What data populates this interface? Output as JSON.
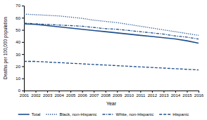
{
  "chart_data": {
    "type": "line",
    "x": [
      2001,
      2002,
      2003,
      2004,
      2005,
      2006,
      2007,
      2008,
      2009,
      2010,
      2011,
      2012,
      2013,
      2014,
      2015,
      2016
    ],
    "series": [
      {
        "name": "Total",
        "color": "#1f4e8c",
        "line_style": "solid",
        "values": [
          55.0,
          54.5,
          53.5,
          52.5,
          51.5,
          50.5,
          49.5,
          48.5,
          47.5,
          46.5,
          45.5,
          44.5,
          43.5,
          42.5,
          41.0,
          39.0
        ]
      },
      {
        "name": "Black, non-Hispanic",
        "color": "#1f4e8c",
        "line_style": "dotted",
        "values": [
          63.0,
          62.5,
          62.0,
          61.5,
          60.5,
          59.5,
          58.0,
          57.0,
          56.0,
          54.5,
          53.0,
          51.5,
          50.0,
          48.5,
          47.0,
          45.5
        ]
      },
      {
        "name": "White, non-Hispanic",
        "color": "#1f4e8c",
        "line_style": "dashdot",
        "values": [
          55.5,
          55.0,
          54.5,
          54.0,
          53.5,
          53.0,
          52.0,
          51.0,
          50.5,
          49.5,
          48.5,
          47.5,
          46.5,
          45.0,
          44.0,
          42.5
        ]
      },
      {
        "name": "Hispanic",
        "color": "#1f4e8c",
        "line_style": "dashed",
        "values": [
          24.0,
          24.0,
          23.5,
          23.0,
          22.5,
          22.0,
          21.5,
          21.0,
          20.5,
          20.0,
          19.5,
          19.0,
          18.5,
          18.0,
          17.5,
          17.0
        ]
      }
    ],
    "xlabel": "Year",
    "ylabel": "Deaths per 100,000 population",
    "xlim": [
      2001,
      2016
    ],
    "xticks": [
      2001,
      2002,
      2003,
      2004,
      2005,
      2006,
      2007,
      2008,
      2009,
      2010,
      2011,
      2012,
      2013,
      2014,
      2015,
      2016
    ],
    "ylim": [
      0,
      70
    ],
    "yticks": [
      0,
      10,
      20,
      30,
      40,
      50,
      60,
      70
    ],
    "legend": "lower center"
  }
}
